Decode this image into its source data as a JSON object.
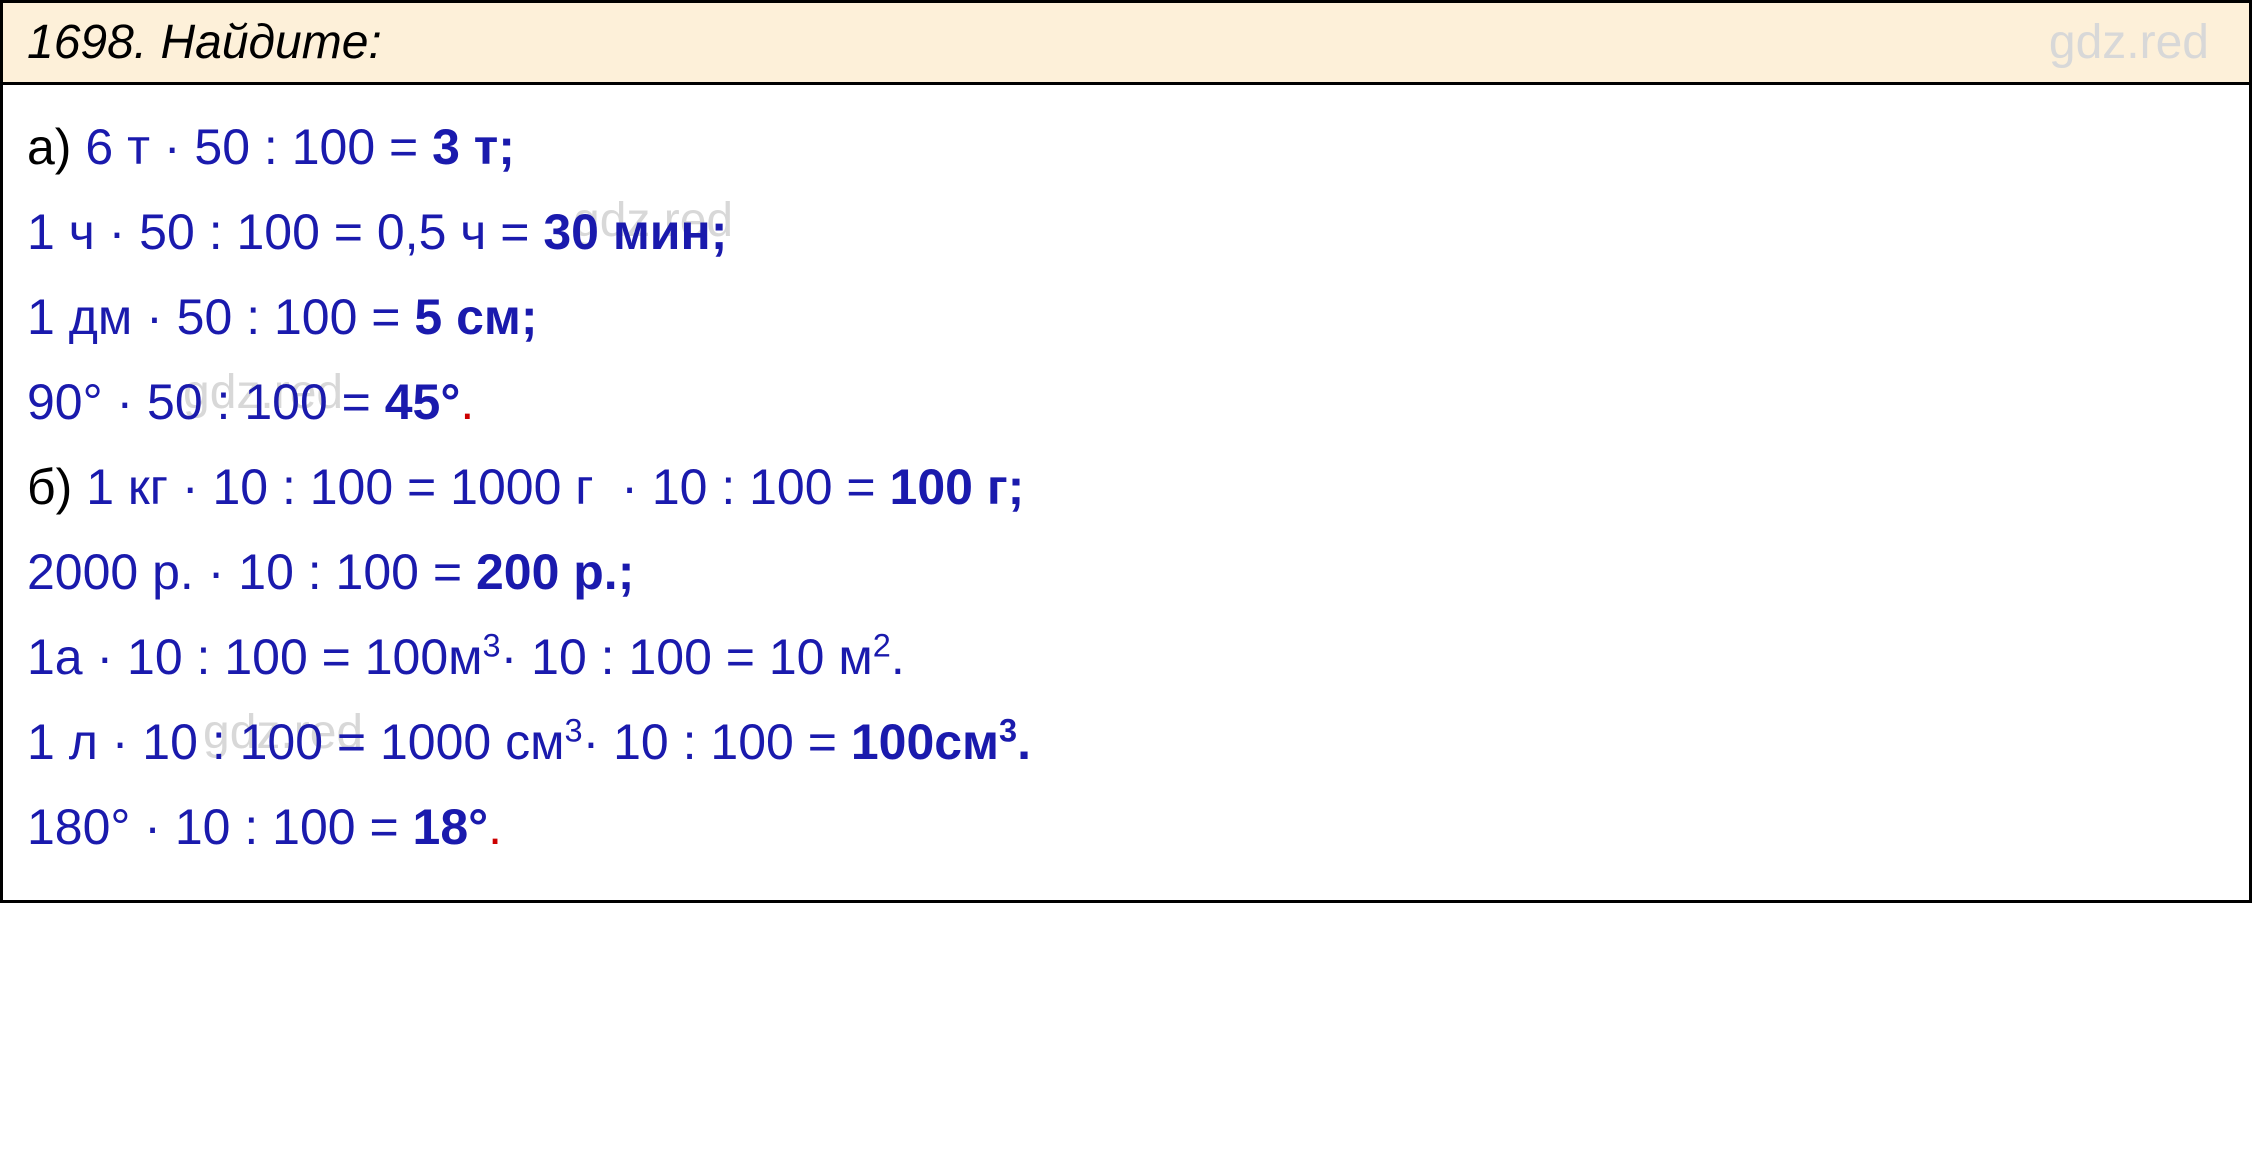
{
  "header": {
    "number": "1698.",
    "title": "Найдите:",
    "watermark": "gdz.red"
  },
  "content": {
    "watermark_text": "gdz.red",
    "lines": {
      "a_label": "а)",
      "line1": "6 т · 50 : 100 = 3 т;",
      "line2": "1 ч · 50 : 100 = 0,5 ч = 30 мин;",
      "line3": "1 дм · 50 : 100 = 5 см;",
      "line4_part1": "90° · 50 : 100 = ",
      "line4_bold": "45°",
      "b_label": "б)",
      "line5_part1": "1 кг · 10 : 100 = 1000 г  · 10 : 100 = ",
      "line5_bold": "100 г;",
      "line6_part1": "2000 р. · 10 : 100 = ",
      "line6_bold": "200 р.;",
      "line7_part1": "1а · 10 : 100 = 100м",
      "line7_exp1": "3",
      "line7_part2": "· 10 : 100 = 10 м",
      "line7_exp2": "2",
      "line7_end": ".",
      "line8_part1": "1 л · 10 : 100 = 1000 см",
      "line8_exp1": "3",
      "line8_part2": "· 10 : 100 = ",
      "line8_bold": "100см",
      "line8_exp2": "3",
      "line8_end": ".",
      "line9_part1": "180° · 10 : 100 = ",
      "line9_bold": "18°"
    }
  },
  "colors": {
    "header_bg": "#fdf0d9",
    "text_blue": "#1a1aad",
    "text_black": "#000000",
    "watermark": "#d8d8d8",
    "red": "#cc0000",
    "border": "#000000",
    "content_bg": "#ffffff"
  },
  "typography": {
    "header_fontsize": 48,
    "content_fontsize": 50,
    "font_family": "Comic Sans MS"
  }
}
